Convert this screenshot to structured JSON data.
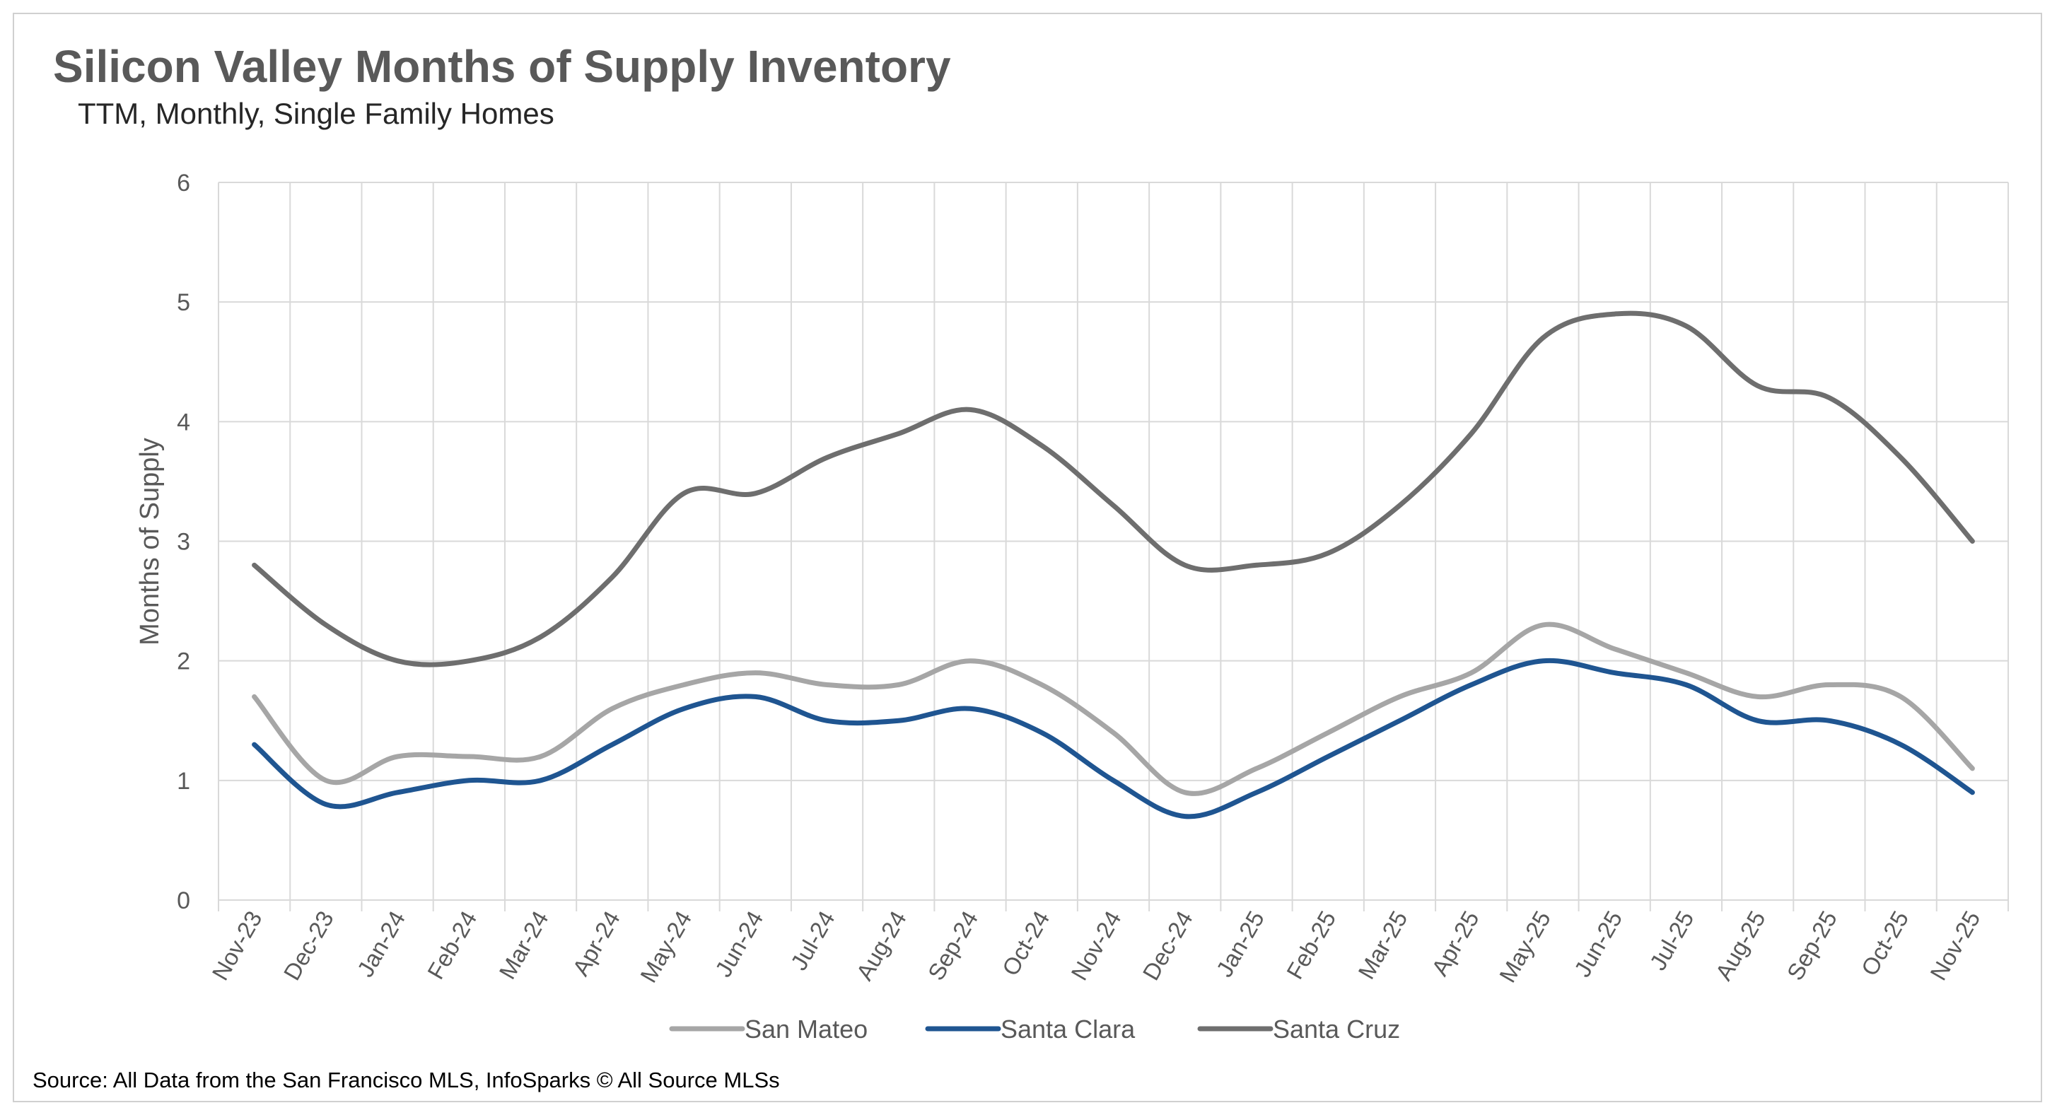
{
  "chart_data": {
    "type": "line",
    "title": "Silicon Valley Months of Supply Inventory",
    "subtitle": "TTM, Monthly, Single Family Homes",
    "ylabel": "Months of Supply",
    "xlabel": "",
    "ylim": [
      0,
      6
    ],
    "yticks": [
      "0",
      "1",
      "2",
      "3",
      "4",
      "5",
      "6"
    ],
    "grid": true,
    "legend_position": "bottom",
    "categories": [
      "Nov-23",
      "Dec-23",
      "Jan-24",
      "Feb-24",
      "Mar-24",
      "Apr-24",
      "May-24",
      "Jun-24",
      "Jul-24",
      "Aug-24",
      "Sep-24",
      "Oct-24",
      "Nov-24",
      "Dec-24",
      "Jan-25",
      "Feb-25",
      "Mar-25",
      "Apr-25",
      "May-25",
      "Jun-25",
      "Jul-25",
      "Aug-25",
      "Sep-25",
      "Oct-25",
      "Nov-25"
    ],
    "series": [
      {
        "name": "San Mateo",
        "color": "#a6a6a6",
        "values": [
          1.7,
          1.0,
          1.2,
          1.2,
          1.2,
          1.6,
          1.8,
          1.9,
          1.8,
          1.8,
          2.0,
          1.8,
          1.4,
          0.9,
          1.1,
          1.4,
          1.7,
          1.9,
          2.3,
          2.1,
          1.9,
          1.7,
          1.8,
          1.7,
          1.1
        ]
      },
      {
        "name": "Santa Clara",
        "color": "#1f5591",
        "values": [
          1.3,
          0.8,
          0.9,
          1.0,
          1.0,
          1.3,
          1.6,
          1.7,
          1.5,
          1.5,
          1.6,
          1.4,
          1.0,
          0.7,
          0.9,
          1.2,
          1.5,
          1.8,
          2.0,
          1.9,
          1.8,
          1.5,
          1.5,
          1.3,
          0.9
        ]
      },
      {
        "name": "Santa Cruz",
        "color": "#6e6e6e",
        "values": [
          2.8,
          2.3,
          2.0,
          2.0,
          2.2,
          2.7,
          3.4,
          3.4,
          3.7,
          3.9,
          4.1,
          3.8,
          3.3,
          2.8,
          2.8,
          2.9,
          3.3,
          3.9,
          4.7,
          4.9,
          4.8,
          4.3,
          4.2,
          3.7,
          3.0
        ]
      }
    ],
    "source_note": "Source: All Data from the San Francisco MLS, InfoSparks © All Source MLSs"
  }
}
